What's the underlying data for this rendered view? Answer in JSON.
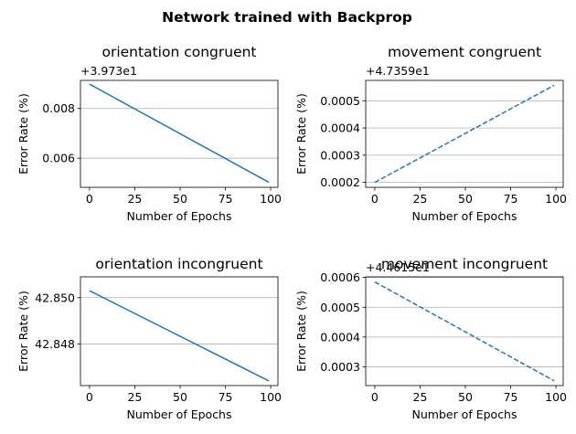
{
  "figure": {
    "title": "Network trained with Backprop"
  },
  "chart_data": [
    {
      "type": "line",
      "title": "orientation congruent",
      "xlabel": "Number of Epochs",
      "ylabel": "Error Rate (%)",
      "offset_label": "+3.973e1",
      "xlim": [
        -5,
        104
      ],
      "ylim": [
        0.00483,
        0.00913
      ],
      "xticks": [
        0,
        25,
        50,
        75,
        100
      ],
      "yticks": [
        0.006,
        0.008
      ],
      "yticklabels": [
        "0.006",
        "0.008"
      ],
      "grid": "y",
      "series": [
        {
          "line_style": "solid",
          "color": "#1f77b4",
          "x": [
            0,
            99
          ],
          "y": [
            0.00898,
            0.00503
          ]
        }
      ]
    },
    {
      "type": "line",
      "title": "movement congruent",
      "xlabel": "Number of Epochs",
      "ylabel": "Error Rate (%)",
      "offset_label": "+4.7359e1",
      "xlim": [
        -5,
        104
      ],
      "ylim": [
        0.000182,
        0.000575
      ],
      "xticks": [
        0,
        25,
        50,
        75,
        100
      ],
      "yticks": [
        0.0002,
        0.0003,
        0.0004,
        0.0005
      ],
      "yticklabels": [
        "0.0002",
        "0.0003",
        "0.0004",
        "0.0005"
      ],
      "grid": "y",
      "series": [
        {
          "line_style": "dashed",
          "color": "#1f77b4",
          "x": [
            0,
            99
          ],
          "y": [
            0.0002,
            0.000557
          ]
        }
      ]
    },
    {
      "type": "line",
      "title": "orientation incongruent",
      "xlabel": "Number of Epochs",
      "ylabel": "Error Rate (%)",
      "offset_label": "",
      "xlim": [
        -5,
        104
      ],
      "ylim": [
        42.8462,
        42.8509
      ],
      "xticks": [
        0,
        25,
        50,
        75,
        100
      ],
      "yticks": [
        42.848,
        42.85
      ],
      "yticklabels": [
        "42.848",
        "42.850"
      ],
      "grid": "y",
      "series": [
        {
          "line_style": "solid",
          "color": "#1f77b4",
          "x": [
            0,
            99
          ],
          "y": [
            42.8503,
            42.8464
          ]
        }
      ]
    },
    {
      "type": "line",
      "title": "movement incongruent",
      "xlabel": "Number of Epochs",
      "ylabel": "Error Rate (%)",
      "offset_label": "+4.4615e1",
      "xlim": [
        -5,
        104
      ],
      "ylim": [
        0.000237,
        0.000602
      ],
      "xticks": [
        0,
        25,
        50,
        75,
        100
      ],
      "yticks": [
        0.0003,
        0.0004,
        0.0005,
        0.0006
      ],
      "yticklabels": [
        "0.0003",
        "0.0004",
        "0.0005",
        "0.0006"
      ],
      "grid": "y",
      "series": [
        {
          "line_style": "dashed",
          "color": "#1f77b4",
          "x": [
            0,
            99
          ],
          "y": [
            0.000585,
            0.000253
          ]
        }
      ]
    }
  ]
}
